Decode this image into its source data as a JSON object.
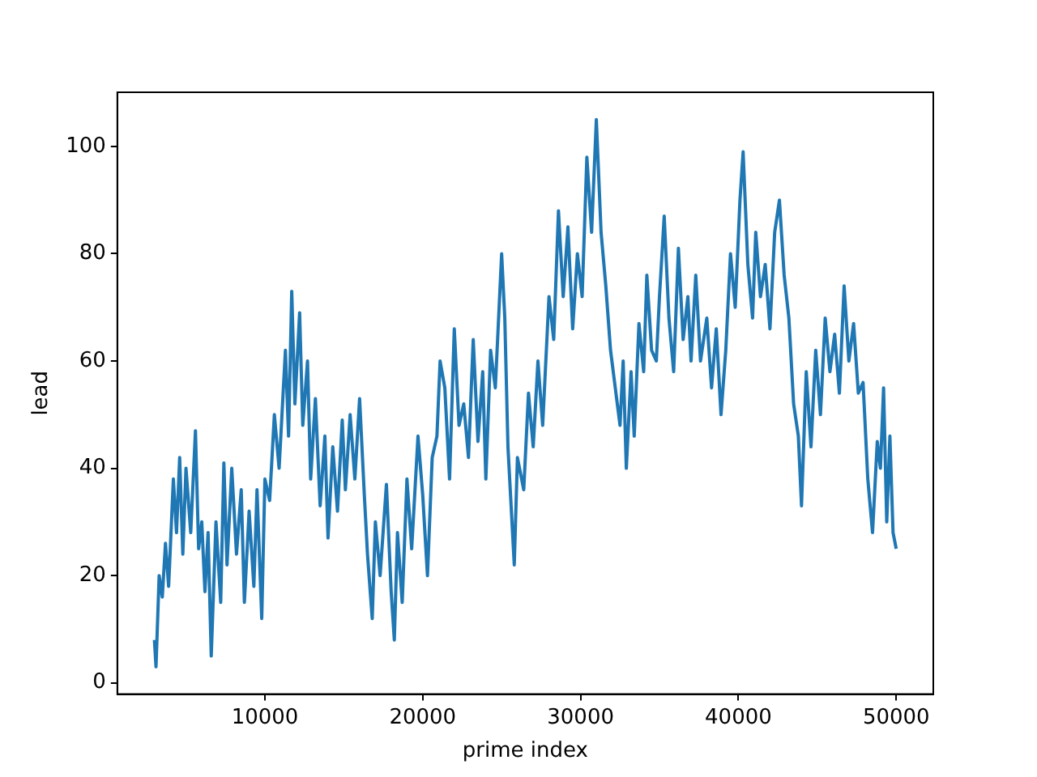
{
  "chart_data": {
    "type": "line",
    "xlabel": "prime index",
    "ylabel": "lead",
    "xlim": [
      650,
      52350
    ],
    "ylim": [
      -2.1,
      110.1
    ],
    "xticks": [
      10000,
      20000,
      30000,
      40000,
      50000
    ],
    "yticks": [
      0,
      20,
      40,
      60,
      80,
      100
    ],
    "grid": false,
    "legend": false,
    "marker": "none",
    "line_style": "solid",
    "series": [
      {
        "color": "#1f77b4",
        "x": [
          3000,
          3100,
          3300,
          3500,
          3700,
          3900,
          4200,
          4400,
          4600,
          4800,
          5000,
          5300,
          5600,
          5800,
          6000,
          6200,
          6400,
          6600,
          6900,
          7200,
          7400,
          7600,
          7900,
          8200,
          8500,
          8700,
          9000,
          9300,
          9500,
          9800,
          10000,
          10300,
          10600,
          10900,
          11300,
          11500,
          11700,
          11900,
          12200,
          12400,
          12700,
          12900,
          13200,
          13500,
          13800,
          14000,
          14300,
          14600,
          14900,
          15100,
          15400,
          15700,
          16000,
          16300,
          16500,
          16800,
          17000,
          17300,
          17700,
          18000,
          18200,
          18400,
          18700,
          19000,
          19300,
          19700,
          20000,
          20300,
          20600,
          20900,
          21100,
          21400,
          21700,
          22000,
          22300,
          22600,
          22900,
          23200,
          23500,
          23800,
          24000,
          24300,
          24600,
          25000,
          25200,
          25400,
          25600,
          25800,
          26000,
          26400,
          26700,
          27000,
          27300,
          27600,
          28000,
          28300,
          28600,
          28900,
          29200,
          29500,
          29800,
          30100,
          30400,
          30700,
          31000,
          31300,
          31600,
          31900,
          32200,
          32500,
          32700,
          32900,
          33200,
          33400,
          33700,
          34000,
          34200,
          34500,
          34800,
          35000,
          35300,
          35600,
          35900,
          36200,
          36500,
          36800,
          37000,
          37300,
          37600,
          38000,
          38300,
          38600,
          38900,
          39200,
          39500,
          39800,
          40100,
          40300,
          40600,
          40900,
          41100,
          41400,
          41700,
          42000,
          42300,
          42600,
          42900,
          43200,
          43500,
          43800,
          44000,
          44300,
          44600,
          44900,
          45200,
          45500,
          45800,
          46100,
          46400,
          46700,
          47000,
          47300,
          47600,
          47900,
          48200,
          48500,
          48800,
          49000,
          49200,
          49400,
          49600,
          49800,
          50000
        ],
        "values": [
          8,
          3,
          20,
          16,
          26,
          18,
          38,
          28,
          42,
          24,
          40,
          28,
          47,
          25,
          30,
          17,
          28,
          5,
          30,
          15,
          41,
          22,
          40,
          24,
          36,
          15,
          32,
          18,
          36,
          12,
          38,
          34,
          50,
          40,
          62,
          46,
          73,
          52,
          69,
          48,
          60,
          38,
          53,
          33,
          46,
          27,
          44,
          32,
          49,
          36,
          50,
          38,
          53,
          35,
          24,
          12,
          30,
          20,
          37,
          17,
          8,
          28,
          15,
          38,
          25,
          46,
          35,
          20,
          42,
          46,
          60,
          55,
          38,
          66,
          48,
          52,
          42,
          64,
          45,
          58,
          38,
          62,
          55,
          80,
          68,
          44,
          33,
          22,
          42,
          36,
          54,
          44,
          60,
          48,
          72,
          64,
          88,
          72,
          85,
          66,
          80,
          72,
          98,
          84,
          105,
          84,
          74,
          62,
          55,
          48,
          60,
          40,
          58,
          46,
          67,
          58,
          76,
          62,
          60,
          72,
          87,
          68,
          58,
          81,
          64,
          72,
          60,
          76,
          60,
          68,
          55,
          66,
          50,
          62,
          80,
          70,
          90,
          99,
          78,
          68,
          84,
          72,
          78,
          66,
          84,
          90,
          76,
          68,
          52,
          46,
          33,
          58,
          44,
          62,
          50,
          68,
          58,
          65,
          54,
          74,
          60,
          67,
          54,
          56,
          38,
          28,
          45,
          40,
          55,
          30,
          46,
          28,
          25
        ]
      }
    ]
  }
}
